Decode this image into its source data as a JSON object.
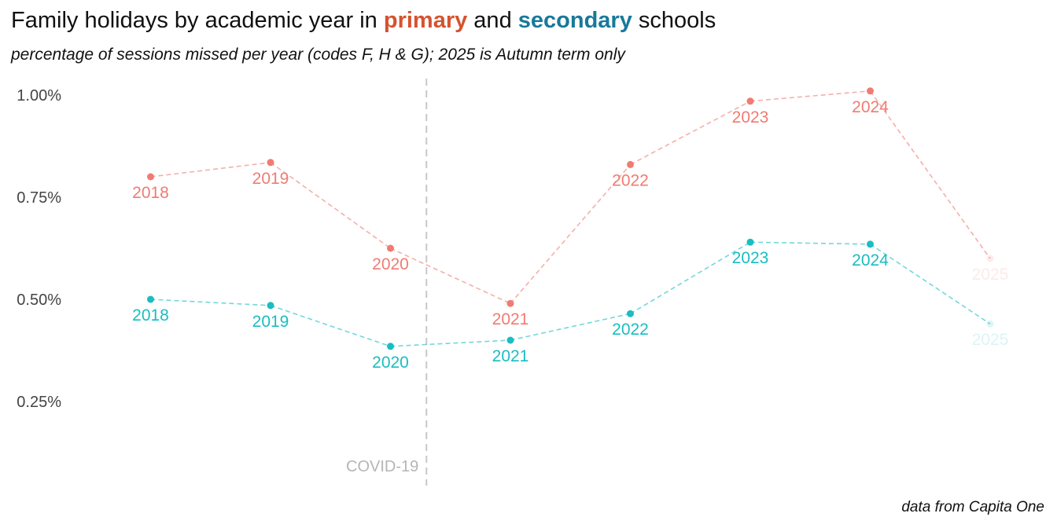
{
  "title": {
    "prefix": "Family holidays by academic year in ",
    "primary": "primary",
    "middle": " and ",
    "secondary": "secondary",
    "suffix": " schools"
  },
  "subtitle": "percentage of sessions missed per year (codes F, H & G); 2025 is Autumn term only",
  "caption": "data from Capita One",
  "chart_data": {
    "type": "line",
    "x": [
      2018,
      2019,
      2020,
      2021,
      2022,
      2023,
      2024,
      2025
    ],
    "series": [
      {
        "name": "primary",
        "color": "#f07b72",
        "values": [
          0.8,
          0.835,
          0.625,
          0.49,
          0.83,
          0.985,
          1.01,
          0.6
        ],
        "labels": [
          "2018",
          "2019",
          "2020",
          "2021",
          "2022",
          "2023",
          "2024",
          "2025"
        ]
      },
      {
        "name": "secondary",
        "color": "#19bdc2",
        "values": [
          0.5,
          0.485,
          0.385,
          0.4,
          0.465,
          0.64,
          0.635,
          0.44
        ],
        "labels": [
          "2018",
          "2019",
          "2020",
          "2021",
          "2022",
          "2023",
          "2024",
          "2025"
        ]
      }
    ],
    "faded_last_point": true,
    "yticks": [
      "0.25%",
      "0.50%",
      "0.75%",
      "1.00%"
    ],
    "ytick_values": [
      0.25,
      0.5,
      0.75,
      1.0
    ],
    "ylim": [
      0.05,
      1.05
    ],
    "xlim": [
      2017.4,
      2025.4
    ],
    "vline": {
      "x": 2020.3,
      "label": "COVID-19"
    },
    "grid": false,
    "line_style": "dashed"
  }
}
